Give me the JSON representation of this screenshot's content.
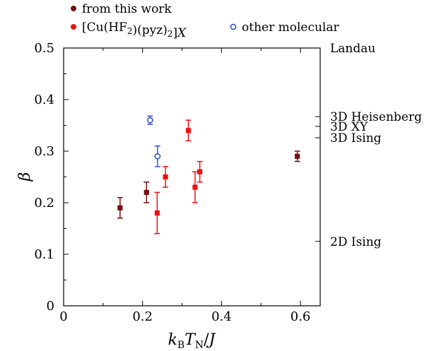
{
  "chart_data": {
    "type": "scatter",
    "xlabel": "k_B T_N / J",
    "ylabel": "β",
    "xlim": [
      0,
      0.65
    ],
    "ylim": [
      0,
      0.5
    ],
    "x_ticks": [
      0,
      0.2,
      0.4,
      0.6
    ],
    "x_tick_labels": [
      "0",
      "0.2",
      "0.4",
      "0.6"
    ],
    "y_ticks": [
      0,
      0.1,
      0.2,
      0.3,
      0.4,
      0.5
    ],
    "y_tick_labels": [
      "0",
      "0.1",
      "0.2",
      "0.3",
      "0.4",
      "0.5"
    ],
    "reference_levels": [
      {
        "label": "Landau",
        "value": 0.5
      },
      {
        "label": "3D Heisenberg",
        "value": 0.367
      },
      {
        "label": "3D XY",
        "value": 0.348
      },
      {
        "label": "3D Ising",
        "value": 0.326
      },
      {
        "label": "2D Ising",
        "value": 0.125
      }
    ],
    "legend": {
      "placement": "top"
    },
    "series": [
      {
        "name": "from this work",
        "color": "#7a0f0f",
        "marker": "filled-square",
        "points": [
          {
            "x": 0.143,
            "y": 0.19,
            "yerr": 0.02
          },
          {
            "x": 0.21,
            "y": 0.22,
            "yerr": 0.02
          },
          {
            "x": 0.592,
            "y": 0.29,
            "yerr": 0.01
          }
        ]
      },
      {
        "name": "[Cu(HF2)(pyz)2]X",
        "color": "#ee1111",
        "marker": "filled-square",
        "points": [
          {
            "x": 0.237,
            "y": 0.18,
            "yerr": 0.04
          },
          {
            "x": 0.258,
            "y": 0.25,
            "yerr": 0.02
          },
          {
            "x": 0.316,
            "y": 0.34,
            "yerr": 0.02
          },
          {
            "x": 0.333,
            "y": 0.23,
            "yerr": 0.03
          },
          {
            "x": 0.345,
            "y": 0.26,
            "yerr": 0.02
          }
        ]
      },
      {
        "name": "other molecular",
        "color": "#3355cc",
        "marker": "open-circle",
        "points": [
          {
            "x": 0.219,
            "y": 0.36,
            "yerr": 0.008
          },
          {
            "x": 0.238,
            "y": 0.29,
            "yerr": 0.02
          }
        ]
      }
    ]
  }
}
